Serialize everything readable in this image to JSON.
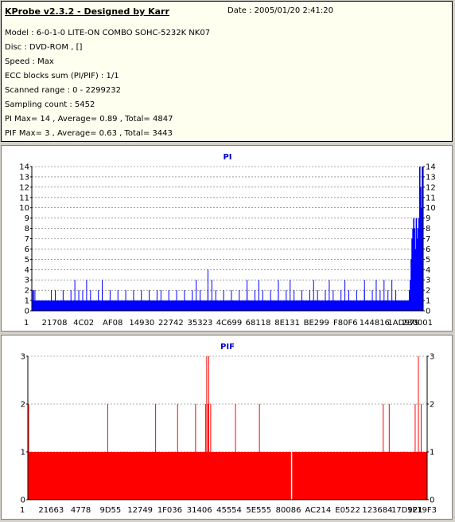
{
  "header": {
    "title": "KProbe v2.3.2 - Designed by Karr",
    "date": "Date : 2005/01/20 2:41:20",
    "lines": [
      "Model : 6-0-1-0 LITE-ON COMBO SOHC-5232K NK07",
      "Disc : DVD-ROM ,  []",
      "Speed : Max",
      "ECC blocks sum (PI/PIF) : 1/1",
      "Scanned range : 0 - 2299232",
      "Sampling count : 5452",
      "PI Max= 14 , Average= 0.89 , Total= 4847",
      "PIF Max= 3 , Average= 0.63 , Total= 3443"
    ]
  },
  "chart_data": [
    {
      "type": "bar",
      "title": "PI",
      "color": "#0000ff",
      "title_color": "#0000cc",
      "ylim": [
        0,
        14
      ],
      "yticks": [
        0,
        1,
        2,
        3,
        4,
        5,
        6,
        7,
        8,
        9,
        10,
        11,
        12,
        13,
        14
      ],
      "xtick_labels": [
        "1",
        "21708",
        "4C02",
        "AF08",
        "14930",
        "22742",
        "35323",
        "4C699",
        "68118",
        "8E131",
        "BE299",
        "F80F6",
        "144816",
        "1AD979",
        "230001"
      ],
      "base_level": 1,
      "spikes_level2": [
        0.05,
        0.06,
        0.08,
        0.1,
        0.12,
        0.13,
        0.15,
        0.17,
        0.18,
        0.2,
        0.22,
        0.24,
        0.26,
        0.28,
        0.3,
        0.32,
        0.33,
        0.35,
        0.37,
        0.39,
        0.41,
        0.43,
        0.45,
        0.47,
        0.49,
        0.51,
        0.53,
        0.55,
        0.57,
        0.59,
        0.61,
        0.63,
        0.65,
        0.67,
        0.69,
        0.71,
        0.73,
        0.75,
        0.77,
        0.79,
        0.81,
        0.83,
        0.85,
        0.87,
        0.89,
        0.91,
        0.93
      ],
      "spikes_level3": [
        0.11,
        0.14,
        0.18,
        0.42,
        0.46,
        0.55,
        0.58,
        0.63,
        0.66,
        0.72,
        0.76,
        0.8,
        0.85,
        0.88,
        0.9,
        0.92
      ],
      "spikes_level4": [
        0.45
      ],
      "end_values": [
        2,
        3,
        5,
        7,
        8,
        9,
        8,
        6,
        9,
        7,
        8,
        9,
        14,
        12,
        10,
        14
      ],
      "start_value": 2
    },
    {
      "type": "bar",
      "title": "PIF",
      "color": "#ff0000",
      "title_color": "#0000cc",
      "ylim": [
        0,
        3
      ],
      "yticks": [
        0,
        1,
        2,
        3
      ],
      "xtick_labels": [
        "1",
        "21663",
        "4778",
        "9D55",
        "12749",
        "1F036",
        "31406",
        "45554",
        "5E555",
        "80086",
        "AC214",
        "E0522",
        "123684",
        "17D921",
        "1F19F3"
      ],
      "base_level": 1,
      "gap_at": 0.66,
      "spikes_level2": [
        0.002,
        0.2,
        0.32,
        0.375,
        0.42,
        0.445,
        0.451,
        0.458,
        0.52,
        0.58,
        0.89,
        0.905,
        0.97,
        0.985
      ],
      "spikes_level3": [
        0.448,
        0.453,
        0.978
      ]
    }
  ]
}
